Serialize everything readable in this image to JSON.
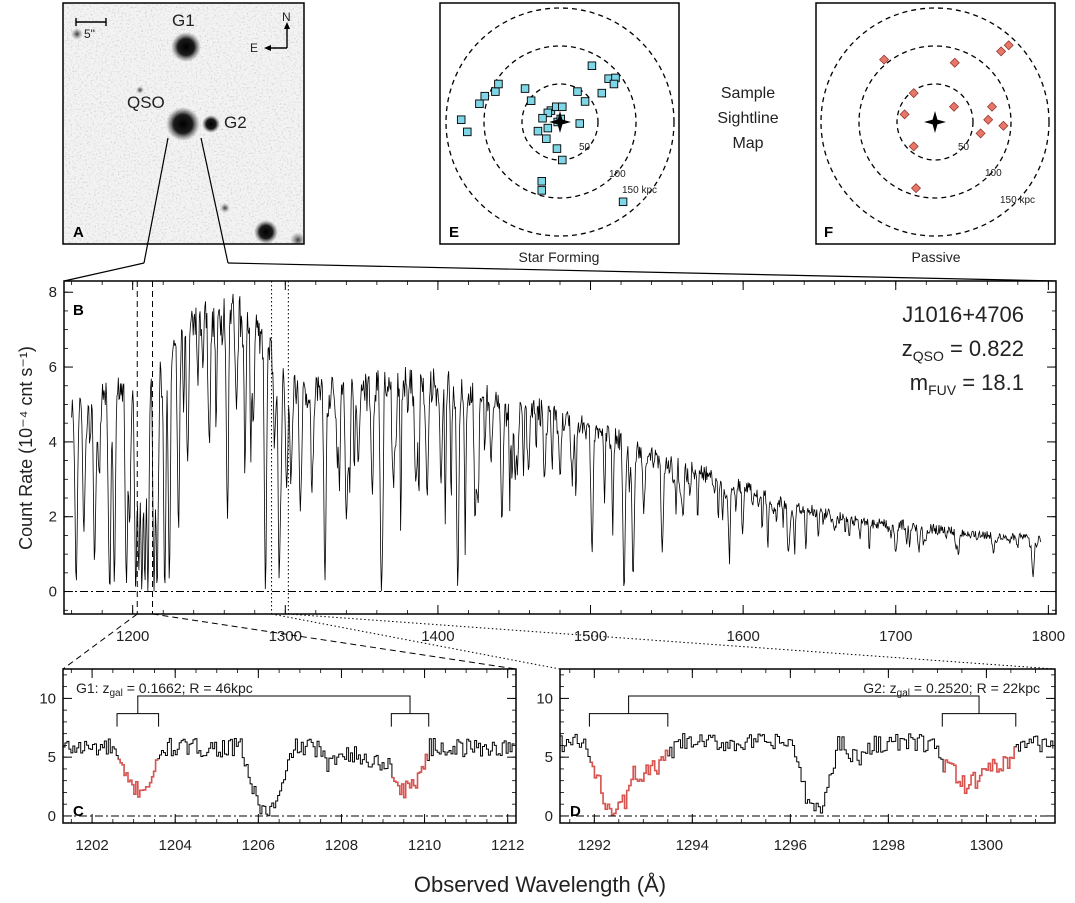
{
  "panel_letters": {
    "a": "A",
    "b": "B",
    "c": "C",
    "d": "D",
    "e": "E",
    "f": "F"
  },
  "image_panel": {
    "scale_label": "5\"",
    "north": "N",
    "east": "E",
    "labels": [
      "G1",
      "QSO",
      "G2"
    ]
  },
  "map_title": [
    "Sample",
    "Sightline",
    "Map"
  ],
  "map_e": {
    "caption": "Star Forming",
    "ring_labels": [
      "50",
      "100",
      "150 kpc"
    ],
    "marker_color": "#7fd6e6",
    "points_kpc": [
      [
        -130,
        -3
      ],
      [
        -122,
        13
      ],
      [
        -106,
        -24
      ],
      [
        -99,
        -34
      ],
      [
        -85,
        -40
      ],
      [
        -81,
        -50
      ],
      [
        -46,
        -44
      ],
      [
        -38,
        -28
      ],
      [
        -12,
        -15
      ],
      [
        -16,
        8
      ],
      [
        -5,
        -20
      ],
      [
        -3,
        0
      ],
      [
        3,
        -20
      ],
      [
        1,
        -4
      ],
      [
        -16,
        -12
      ],
      [
        -23,
        -5
      ],
      [
        -29,
        12
      ],
      [
        -18,
        22
      ],
      [
        -4,
        35
      ],
      [
        33,
        -27
      ],
      [
        26,
        2
      ],
      [
        3,
        50
      ],
      [
        -24,
        78
      ],
      [
        -24,
        90
      ],
      [
        64,
        -57
      ],
      [
        73,
        -58
      ],
      [
        71,
        -50
      ],
      [
        42,
        -74
      ],
      [
        23,
        -40
      ],
      [
        55,
        -38
      ],
      [
        83,
        105
      ]
    ]
  },
  "map_f": {
    "caption": "Passive",
    "ring_labels": [
      "50",
      "100",
      "150 kpc"
    ],
    "marker_color": "#e8776a",
    "points_kpc": [
      [
        -67,
        -82
      ],
      [
        -40,
        -10
      ],
      [
        -28,
        -38
      ],
      [
        26,
        -78
      ],
      [
        25,
        -20
      ],
      [
        75,
        -20
      ],
      [
        97,
        -101
      ],
      [
        87,
        -93
      ],
      [
        70,
        -3
      ],
      [
        90,
        5
      ],
      [
        -28,
        32
      ],
      [
        60,
        15
      ],
      [
        -25,
        87
      ]
    ]
  },
  "chart_data": [
    {
      "type": "line",
      "panel": "B",
      "ylabel": "Count Rate (10⁻⁴ cnt s⁻¹)",
      "xlim": [
        1155,
        1805
      ],
      "ylim": [
        -0.6,
        8.3
      ],
      "xticks": [
        1200,
        1300,
        1400,
        1500,
        1600,
        1700,
        1800
      ],
      "yticks": [
        0,
        2,
        4,
        6,
        8
      ],
      "annotations": [
        "J1016+4706",
        "z_QSO = 0.822",
        "m_FUV = 18.1"
      ],
      "annotation_text": {
        "qso_name": "J1016+4706",
        "z_label": "z",
        "z_sub": "QSO",
        "z_val": " = 0.822",
        "m_label": "m",
        "m_sub": "FUV",
        "m_val": " = 18.1"
      },
      "continuum_knots": [
        [
          1160,
          4.8
        ],
        [
          1175,
          5.1
        ],
        [
          1195,
          5.5
        ],
        [
          1212,
          5.8
        ],
        [
          1225,
          6.6
        ],
        [
          1240,
          7.3
        ],
        [
          1255,
          7.4
        ],
        [
          1270,
          7.4
        ],
        [
          1280,
          7.1
        ],
        [
          1295,
          5.9
        ],
        [
          1310,
          5.3
        ],
        [
          1340,
          5.4
        ],
        [
          1370,
          5.6
        ],
        [
          1400,
          5.55
        ],
        [
          1420,
          5.3
        ],
        [
          1450,
          5.0
        ],
        [
          1480,
          4.6
        ],
        [
          1500,
          4.35
        ],
        [
          1520,
          4.0
        ],
        [
          1540,
          3.6
        ],
        [
          1560,
          3.35
        ],
        [
          1580,
          3.05
        ],
        [
          1600,
          2.75
        ],
        [
          1620,
          2.45
        ],
        [
          1640,
          2.2
        ],
        [
          1660,
          2.0
        ],
        [
          1680,
          1.85
        ],
        [
          1700,
          1.8
        ],
        [
          1720,
          1.7
        ],
        [
          1740,
          1.6
        ],
        [
          1760,
          1.5
        ],
        [
          1780,
          1.45
        ],
        [
          1795,
          1.4
        ]
      ],
      "absorption_lines": [
        [
          1163,
          0.2
        ],
        [
          1168,
          1.5
        ],
        [
          1175,
          0.7
        ],
        [
          1178,
          3.0
        ],
        [
          1185,
          0.0
        ],
        [
          1188,
          0.2
        ],
        [
          1196,
          0.3
        ],
        [
          1198,
          2.0
        ],
        [
          1202,
          0.0
        ],
        [
          1204,
          0.5
        ],
        [
          1206,
          0.0
        ],
        [
          1208,
          0.2
        ],
        [
          1210,
          0.0
        ],
        [
          1214,
          0.0
        ],
        [
          1216,
          0.0
        ],
        [
          1221,
          0.0
        ],
        [
          1224,
          0.3
        ],
        [
          1230,
          2.0
        ],
        [
          1236,
          3.5
        ],
        [
          1250,
          4.5
        ],
        [
          1262,
          5.8
        ],
        [
          1268,
          5.0
        ],
        [
          1279,
          4.5
        ],
        [
          1287,
          0.0
        ],
        [
          1293,
          4.0
        ],
        [
          1296,
          0.3
        ],
        [
          1301,
          3.0
        ],
        [
          1304,
          4.0
        ],
        [
          1310,
          2.5
        ],
        [
          1318,
          3.8
        ],
        [
          1326,
          0.3
        ],
        [
          1334,
          3.5
        ],
        [
          1340,
          2.0
        ],
        [
          1348,
          3.5
        ],
        [
          1357,
          2.7
        ],
        [
          1363,
          0.0
        ],
        [
          1371,
          3.0
        ],
        [
          1386,
          3.5
        ],
        [
          1393,
          2.5
        ],
        [
          1402,
          3.0
        ],
        [
          1413,
          0.1
        ],
        [
          1425,
          3.0
        ],
        [
          1435,
          3.5
        ],
        [
          1442,
          2.0
        ],
        [
          1451,
          3.5
        ],
        [
          1459,
          3.8
        ],
        [
          1470,
          3.0
        ],
        [
          1480,
          3.2
        ],
        [
          1488,
          3.0
        ],
        [
          1501,
          1.0
        ],
        [
          1522,
          0.0
        ],
        [
          1528,
          0.8
        ],
        [
          1535,
          2.2
        ],
        [
          1547,
          1.0
        ],
        [
          1560,
          2.2
        ],
        [
          1590,
          2.2
        ],
        [
          1630,
          1.2
        ],
        [
          1660,
          1.6
        ],
        [
          1700,
          1.0
        ],
        [
          1741,
          1.0
        ],
        [
          1764,
          1.0
        ],
        [
          1790,
          0.4
        ]
      ],
      "dashed_markers_x": [
        1203,
        1213
      ],
      "dotted_markers_x": [
        1291,
        1302
      ]
    },
    {
      "type": "line",
      "panel": "C",
      "xlim": [
        1201.3,
        1212.2
      ],
      "ylim": [
        -0.6,
        12.5
      ],
      "xticks": [
        1202,
        1204,
        1206,
        1208,
        1210,
        1212
      ],
      "yticks": [
        0,
        5,
        10
      ],
      "label": "G1: z_gal = 0.1662; R = 46kpc",
      "label_parts": {
        "name": "G1:  z",
        "sub": "gal",
        "rest": " = 0.1662;  R = 46kpc"
      },
      "highlight_ranges": [
        [
          1202.6,
          1203.6
        ],
        [
          1209.2,
          1210.1
        ]
      ],
      "highlight_color": "#d9534f",
      "features": [
        [
          1203.1,
          0.6,
          3.5
        ],
        [
          1206.2,
          0.6,
          5.4
        ],
        [
          1208.9,
          0.9,
          1.2
        ],
        [
          1209.6,
          0.5,
          3.0
        ],
        [
          1207.7,
          0.25,
          1.5
        ]
      ],
      "bracket_groups": [
        [
          1202.6,
          1203.6
        ],
        [
          1209.2,
          1210.1
        ]
      ],
      "continuum": 5.8
    },
    {
      "type": "line",
      "panel": "D",
      "xlim": [
        1291.3,
        1301.4
      ],
      "ylim": [
        -0.6,
        12.5
      ],
      "xticks": [
        1292,
        1294,
        1296,
        1298,
        1300
      ],
      "yticks": [
        0,
        5,
        10
      ],
      "label": "G2: z_gal = 0.2520; R = 22kpc",
      "label_parts": {
        "name": "G2:  z",
        "sub": "gal",
        "rest": " = 0.2520;  R = 22kpc"
      },
      "highlight_ranges": [
        [
          1291.9,
          1293.5
        ],
        [
          1299.1,
          1300.6
        ]
      ],
      "highlight_color": "#d9534f",
      "features": [
        [
          1292.3,
          0.5,
          4.3
        ],
        [
          1292.9,
          0.8,
          2.6
        ],
        [
          1296.5,
          0.45,
          5.6
        ],
        [
          1299.4,
          0.5,
          2.5
        ],
        [
          1300.0,
          0.7,
          2.2
        ],
        [
          1297.4,
          0.3,
          1.2
        ]
      ],
      "bracket_groups": [
        [
          1291.9,
          1293.5
        ],
        [
          1299.1,
          1300.6
        ]
      ],
      "continuum": 6.2
    }
  ],
  "xlabel": "Observed Wavelength (Å)"
}
